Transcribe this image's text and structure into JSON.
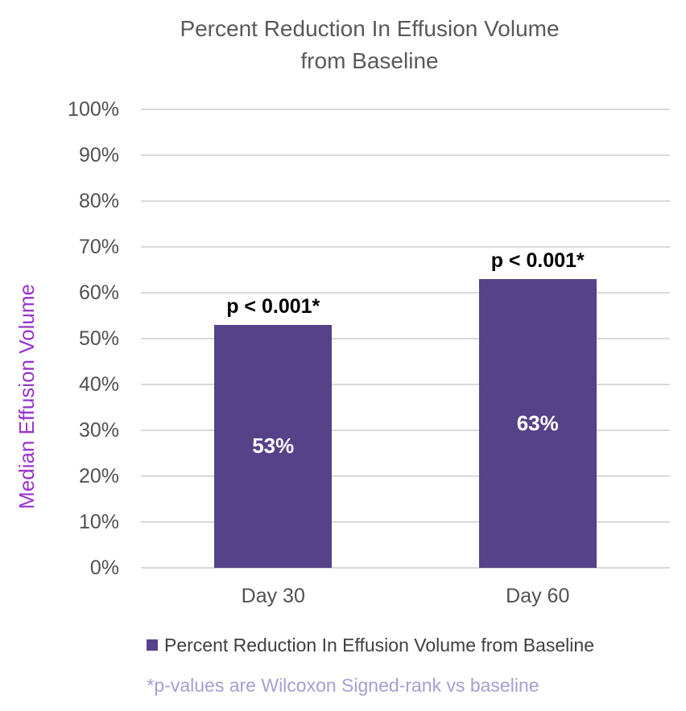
{
  "title": {
    "line1": "Percent Reduction In Effusion Volume",
    "line2": "from Baseline"
  },
  "chart_data": {
    "type": "bar",
    "title": "Percent Reduction In Effusion Volume from Baseline",
    "categories": [
      "Day 30",
      "Day 60"
    ],
    "values": [
      53,
      63
    ],
    "bar_labels": [
      "53%",
      "63%"
    ],
    "annotations": [
      "p < 0.001*",
      "p < 0.001*"
    ],
    "series": [
      {
        "name": "Percent Reduction In Effusion Volume from Baseline",
        "values": [
          53,
          63
        ]
      }
    ],
    "xlabel": "",
    "ylabel": "Median Effusion Volume",
    "ylim": [
      0,
      100
    ],
    "ytick_step": 10,
    "ytick_labels": [
      "0%",
      "10%",
      "20%",
      "30%",
      "40%",
      "50%",
      "60%",
      "70%",
      "80%",
      "90%",
      "100%"
    ],
    "grid": "horizontal",
    "legend_position": "bottom"
  },
  "legend": {
    "label": "Percent Reduction In Effusion Volume from Baseline"
  },
  "footnote": "*p-values are Wilcoxon Signed-rank vs baseline",
  "colors": {
    "bar": "#564288",
    "title": "#595959",
    "axis_text": "#515151",
    "grid": "#D9D9D9",
    "ylabel": "#9933CC",
    "bar_label": "#FFFFFF",
    "annotation": "#000000",
    "legend_text": "#3F3F3F",
    "footnote": "#A3A0D2"
  }
}
